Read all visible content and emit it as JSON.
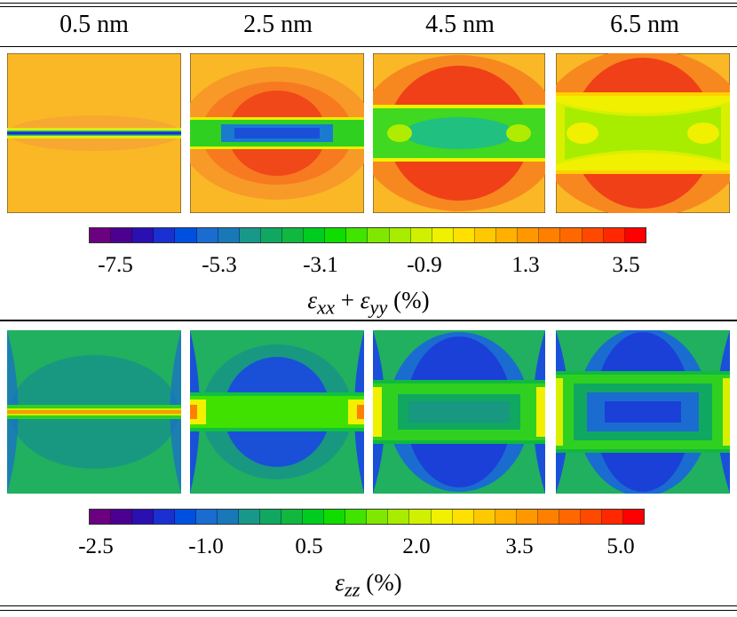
{
  "columns": [
    "0.5 nm",
    "2.5 nm",
    "4.5 nm",
    "6.5 nm"
  ],
  "top_colorbar": {
    "ticks": [
      "-7.5",
      "-5.3",
      "-3.1",
      "-0.9",
      "1.3",
      "3.5"
    ],
    "label_symbol": "ε",
    "label_sub1": "xx",
    "label_plus": " + ",
    "label_sub2": "yy",
    "label_unit": " (%)"
  },
  "bottom_colorbar": {
    "ticks": [
      "-2.5",
      "-1.0",
      "0.5",
      "2.0",
      "3.5",
      "5.0"
    ],
    "label_symbol": "ε",
    "label_sub": "zz",
    "label_unit": " (%)"
  },
  "colormap": [
    "#6b0080",
    "#4b0090",
    "#2a10b0",
    "#1a30d0",
    "#0050e0",
    "#1a6cd0",
    "#1878b8",
    "#189888",
    "#10a860",
    "#10b840",
    "#00cc20",
    "#10dc00",
    "#40e400",
    "#80e800",
    "#a8ec00",
    "#d0f000",
    "#f0f000",
    "#ffe000",
    "#ffc800",
    "#ffb000",
    "#ff9800",
    "#ff8000",
    "#ff6800",
    "#ff4800",
    "#ff2800",
    "#ff0000"
  ]
}
